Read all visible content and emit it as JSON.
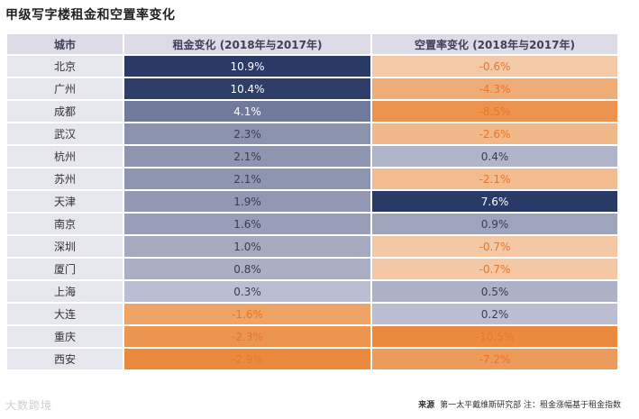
{
  "title": "甲级写字楼租金和空置率变化",
  "chart_data": {
    "type": "table",
    "title": "甲级写字楼租金和空置率变化",
    "columns": [
      "城市",
      "租金变化 (2018年与2017年)",
      "空置率变化 (2018年与2017年)"
    ],
    "rows": [
      {
        "city": "北京",
        "rent": 10.9,
        "vacancy": -0.6
      },
      {
        "city": "广州",
        "rent": 10.4,
        "vacancy": -4.3
      },
      {
        "city": "成都",
        "rent": 4.1,
        "vacancy": -8.5
      },
      {
        "city": "武汉",
        "rent": 2.3,
        "vacancy": -2.6
      },
      {
        "city": "杭州",
        "rent": 2.1,
        "vacancy": 0.4
      },
      {
        "city": "苏州",
        "rent": 2.1,
        "vacancy": -2.1
      },
      {
        "city": "天津",
        "rent": 1.9,
        "vacancy": 7.6
      },
      {
        "city": "南京",
        "rent": 1.6,
        "vacancy": 0.9
      },
      {
        "city": "深圳",
        "rent": 1.0,
        "vacancy": -0.7
      },
      {
        "city": "厦门",
        "rent": 0.8,
        "vacancy": -0.7
      },
      {
        "city": "上海",
        "rent": 0.3,
        "vacancy": 0.5
      },
      {
        "city": "大连",
        "rent": -1.6,
        "vacancy": 0.2
      },
      {
        "city": "重庆",
        "rent": -2.3,
        "vacancy": -10.5
      },
      {
        "city": "西安",
        "rent": -2.9,
        "vacancy": -7.2
      }
    ],
    "value_suffix": "%"
  },
  "colors": {
    "positive_dark": "#2a3a66",
    "positive_light": "#d2d3e3",
    "negative_light": "#f6d3b7",
    "negative_dark": "#ea8a3e",
    "negative_text": "#e8762a",
    "positive_text_dark": "#ffffff",
    "positive_text_light": "#3c3c50"
  },
  "footer": {
    "source_label": "来源",
    "source_text": "第一太平戴维斯研究部  注：租金涨幅基于租金指数"
  },
  "watermark": "大数跨境"
}
